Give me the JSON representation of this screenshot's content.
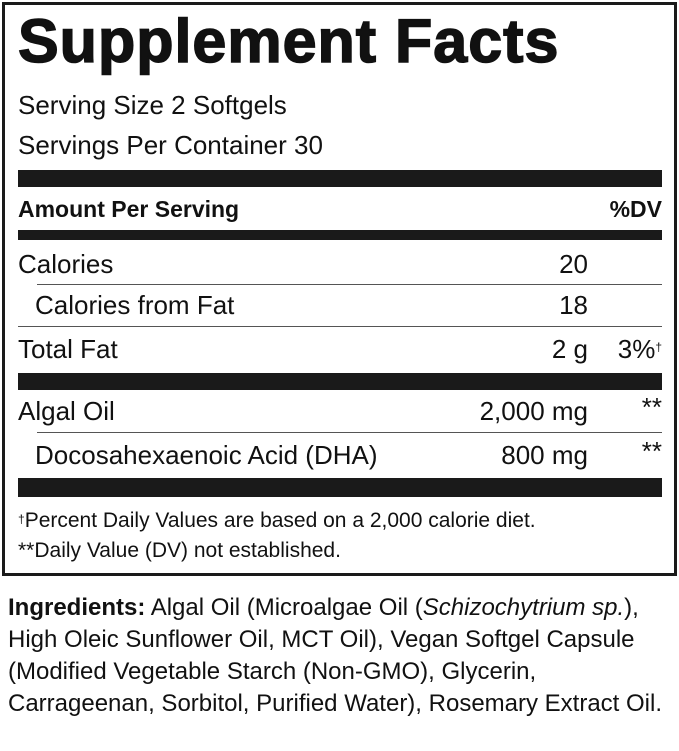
{
  "title": "Supplement Facts",
  "serving_size": "Serving Size 2 Softgels",
  "servings_per_container": "Servings Per Container 30",
  "header": {
    "amount": "Amount Per Serving",
    "dv": "%DV"
  },
  "rows": [
    {
      "name": "Calories",
      "amount": "20",
      "dv": ""
    },
    {
      "name": "Calories from Fat",
      "amount": "18",
      "dv": ""
    },
    {
      "name": "Total Fat",
      "amount": "2 g",
      "dv": "3%",
      "dv_mark": "†"
    },
    {
      "name": "Algal Oil",
      "amount": "2,000 mg",
      "dv": "**"
    },
    {
      "name": "Docosahexaenoic Acid (DHA)",
      "amount": "800 mg",
      "dv": "**"
    }
  ],
  "footnotes": {
    "percent_mark": "†",
    "percent": "Percent Daily Values are based on a 2,000 calorie diet.",
    "dv_not_established": "**Daily Value (DV) not established."
  },
  "ingredients": {
    "label": "Ingredients:",
    "text_1": " Algal Oil (Microalgae Oil (",
    "italic": "Schizochytrium sp.",
    "text_2": "), High Oleic Sunflower Oil, MCT Oil), Vegan Softgel Capsule (Modified Vegetable Starch (Non-GMO), Glycerin, Carrageenan, Sorbitol, Purified Water), Rosemary Extract Oil."
  }
}
